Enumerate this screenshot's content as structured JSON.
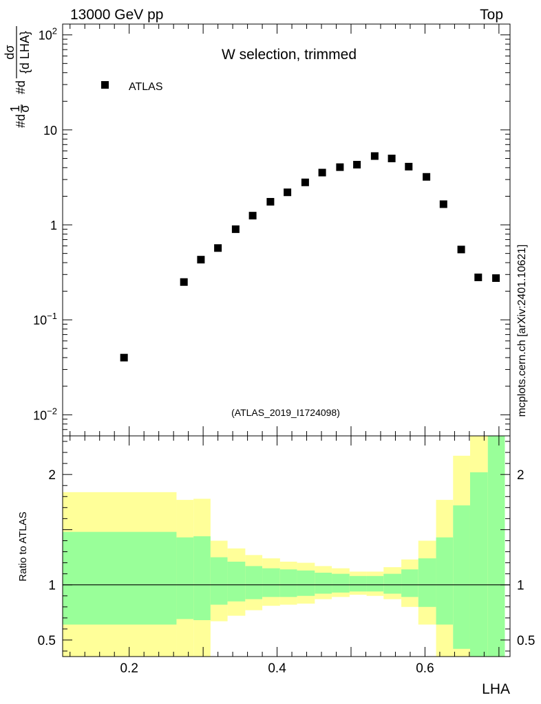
{
  "header": {
    "energy_label": "13000 GeV pp",
    "process_label": "Top",
    "side_label": "mcplots.cern.ch [arXiv:2401.10621]"
  },
  "chart_data": {
    "type": "scatter",
    "title": "W selection, trimmed",
    "xlabel": "LHA",
    "ylabel_main": "1/σ dσ/d LHA",
    "ylabel_main_parts": {
      "a": "#d",
      "b": "1",
      "c": "σ",
      "d": "#d",
      "e": "dσ",
      "f": "{d LHA}"
    },
    "ylabel_ratio": "Ratio to ATLAS",
    "analysis_tag": "(ATLAS_2019_I1724098)",
    "legend": [
      {
        "name": "ATLAS",
        "marker": "square",
        "color": "#000000"
      }
    ],
    "xlim": [
      0.11,
      0.715
    ],
    "ylim_main": [
      0.006,
      130
    ],
    "ylog": true,
    "ylim_ratio": [
      0.35,
      2.35
    ],
    "x_ticks": [
      {
        "value": 0.2,
        "label": "0.2"
      },
      {
        "value": 0.4,
        "label": "0.4"
      },
      {
        "value": 0.6,
        "label": "0.6"
      }
    ],
    "y_ticks_main": [
      {
        "value": 0.01,
        "base": "10",
        "exp": "−2"
      },
      {
        "value": 0.1,
        "base": "10",
        "exp": "−1"
      },
      {
        "value": 1,
        "base": "1",
        "exp": ""
      },
      {
        "value": 10,
        "base": "10",
        "exp": ""
      },
      {
        "value": 100,
        "base": "10",
        "exp": "2"
      }
    ],
    "y_ticks_ratio": [
      {
        "value": 0.5,
        "label": "0.5"
      },
      {
        "value": 1,
        "label": "1"
      },
      {
        "value": 2,
        "label": "2"
      }
    ],
    "series": [
      {
        "name": "ATLAS",
        "points": [
          {
            "x": 0.193,
            "y": 0.04
          },
          {
            "x": 0.274,
            "y": 0.25
          },
          {
            "x": 0.297,
            "y": 0.43
          },
          {
            "x": 0.32,
            "y": 0.57
          },
          {
            "x": 0.344,
            "y": 0.9
          },
          {
            "x": 0.367,
            "y": 1.25
          },
          {
            "x": 0.391,
            "y": 1.75
          },
          {
            "x": 0.414,
            "y": 2.2
          },
          {
            "x": 0.438,
            "y": 2.8
          },
          {
            "x": 0.461,
            "y": 3.55
          },
          {
            "x": 0.485,
            "y": 4.05
          },
          {
            "x": 0.508,
            "y": 4.3
          },
          {
            "x": 0.532,
            "y": 5.3
          },
          {
            "x": 0.555,
            "y": 5.0
          },
          {
            "x": 0.578,
            "y": 4.1
          },
          {
            "x": 0.602,
            "y": 3.2
          },
          {
            "x": 0.625,
            "y": 1.65
          },
          {
            "x": 0.649,
            "y": 0.55
          },
          {
            "x": 0.672,
            "y": 0.28
          },
          {
            "x": 0.696,
            "y": 0.275
          }
        ]
      }
    ],
    "ratio_bands": [
      {
        "x0": 0.11,
        "x1": 0.264,
        "green_lo": 0.64,
        "green_hi": 1.48,
        "yellow_lo": 0.3,
        "yellow_hi": 1.84
      },
      {
        "x0": 0.264,
        "x1": 0.287,
        "green_lo": 0.69,
        "green_hi": 1.43,
        "yellow_lo": 0.3,
        "yellow_hi": 1.77
      },
      {
        "x0": 0.287,
        "x1": 0.31,
        "green_lo": 0.68,
        "green_hi": 1.44,
        "yellow_lo": 0.3,
        "yellow_hi": 1.78
      },
      {
        "x0": 0.31,
        "x1": 0.333,
        "green_lo": 0.82,
        "green_hi": 1.25,
        "yellow_lo": 0.67,
        "yellow_hi": 1.4
      },
      {
        "x0": 0.333,
        "x1": 0.357,
        "green_lo": 0.85,
        "green_hi": 1.21,
        "yellow_lo": 0.72,
        "yellow_hi": 1.33
      },
      {
        "x0": 0.357,
        "x1": 0.38,
        "green_lo": 0.87,
        "green_hi": 1.17,
        "yellow_lo": 0.77,
        "yellow_hi": 1.27
      },
      {
        "x0": 0.38,
        "x1": 0.404,
        "green_lo": 0.89,
        "green_hi": 1.15,
        "yellow_lo": 0.81,
        "yellow_hi": 1.24
      },
      {
        "x0": 0.404,
        "x1": 0.427,
        "green_lo": 0.89,
        "green_hi": 1.14,
        "yellow_lo": 0.82,
        "yellow_hi": 1.21
      },
      {
        "x0": 0.427,
        "x1": 0.451,
        "green_lo": 0.9,
        "green_hi": 1.13,
        "yellow_lo": 0.83,
        "yellow_hi": 1.2
      },
      {
        "x0": 0.451,
        "x1": 0.474,
        "green_lo": 0.92,
        "green_hi": 1.11,
        "yellow_lo": 0.87,
        "yellow_hi": 1.17
      },
      {
        "x0": 0.474,
        "x1": 0.498,
        "green_lo": 0.93,
        "green_hi": 1.1,
        "yellow_lo": 0.89,
        "yellow_hi": 1.15
      },
      {
        "x0": 0.498,
        "x1": 0.521,
        "green_lo": 0.94,
        "green_hi": 1.08,
        "yellow_lo": 0.91,
        "yellow_hi": 1.12
      },
      {
        "x0": 0.521,
        "x1": 0.544,
        "green_lo": 0.94,
        "green_hi": 1.08,
        "yellow_lo": 0.9,
        "yellow_hi": 1.12
      },
      {
        "x0": 0.544,
        "x1": 0.568,
        "green_lo": 0.92,
        "green_hi": 1.1,
        "yellow_lo": 0.87,
        "yellow_hi": 1.16
      },
      {
        "x0": 0.568,
        "x1": 0.591,
        "green_lo": 0.89,
        "green_hi": 1.14,
        "yellow_lo": 0.8,
        "yellow_hi": 1.23
      },
      {
        "x0": 0.591,
        "x1": 0.615,
        "green_lo": 0.8,
        "green_hi": 1.24,
        "yellow_lo": 0.64,
        "yellow_hi": 1.4
      },
      {
        "x0": 0.615,
        "x1": 0.638,
        "green_lo": 0.64,
        "green_hi": 1.43,
        "yellow_lo": 0.3,
        "yellow_hi": 1.77
      },
      {
        "x0": 0.638,
        "x1": 0.661,
        "green_lo": 0.42,
        "green_hi": 1.72,
        "yellow_lo": 0.3,
        "yellow_hi": 2.17
      },
      {
        "x0": 0.661,
        "x1": 0.685,
        "green_lo": 0.3,
        "green_hi": 2.02,
        "yellow_lo": 0.3,
        "yellow_hi": 2.6
      },
      {
        "x0": 0.685,
        "x1": 0.708,
        "green_lo": 0.3,
        "green_hi": 2.6,
        "yellow_lo": 0.3,
        "yellow_hi": 2.6
      }
    ],
    "colors": {
      "green": "#99ff99",
      "yellow": "#ffff99",
      "marker": "#000000",
      "label_gray": "#999999"
    }
  }
}
